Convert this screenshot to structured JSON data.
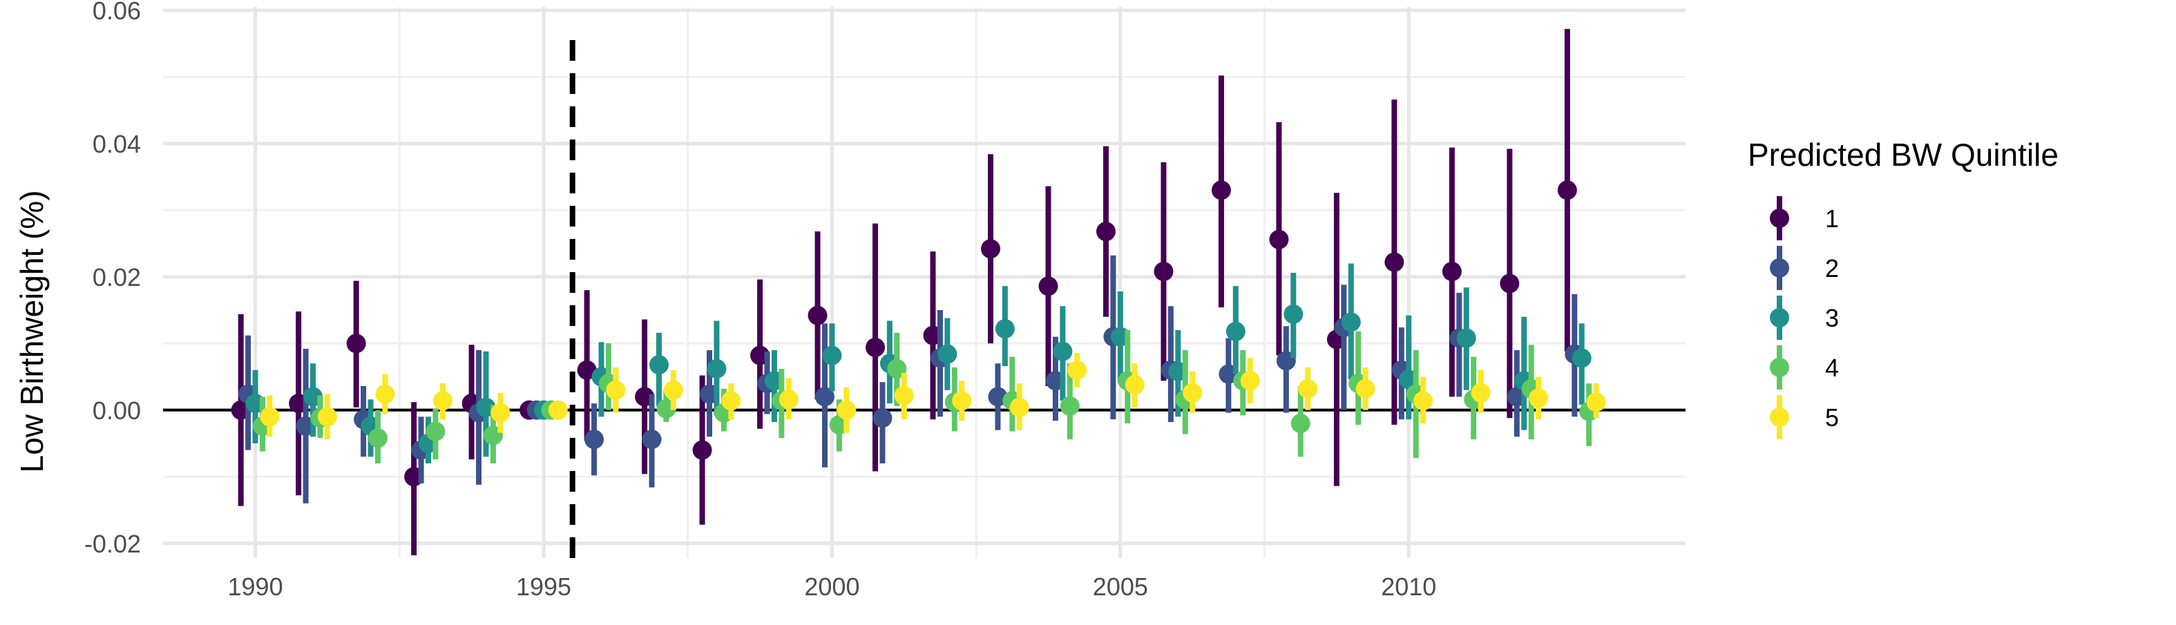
{
  "chart_data": {
    "type": "scatter",
    "subtype": "point-range (coefficient plot with confidence intervals)",
    "ylabel": "Low Birthweight (%)",
    "xlabel": "",
    "xlim": [
      1988.4,
      2014.8
    ],
    "ylim": [
      -0.0222,
      0.0605
    ],
    "x_ticks": [
      1990,
      1995,
      2000,
      2005,
      2010
    ],
    "y_ticks": [
      -0.02,
      0.0,
      0.02,
      0.04,
      0.06
    ],
    "y_tick_labels": [
      "-0.02",
      "0.00",
      "0.02",
      "0.04",
      "0.06"
    ],
    "grid": true,
    "zero_line": true,
    "reference_line": {
      "x": 1995.5,
      "style": "dashed"
    },
    "dodge_offsets": [
      -0.25,
      -0.125,
      0,
      0.125,
      0.25
    ],
    "legend": {
      "title": "Predicted BW Quintile",
      "position": "right"
    },
    "series": [
      {
        "name": "1",
        "color": "#440154",
        "x": [
          1990,
          1991,
          1992,
          1993,
          1994,
          1995,
          1996,
          1997,
          1998,
          1999,
          2000,
          2001,
          2002,
          2003,
          2004,
          2005,
          2006,
          2007,
          2008,
          2009,
          2010,
          2011,
          2012,
          2013
        ],
        "y": [
          0.0,
          0.001,
          0.01,
          -0.01,
          0.001,
          0.0,
          0.006,
          0.002,
          -0.006,
          0.0082,
          0.0142,
          0.0094,
          0.0112,
          0.0242,
          0.0186,
          0.0268,
          0.0208,
          0.033,
          0.0256,
          0.0106,
          0.0222,
          0.0208,
          0.019,
          0.033
        ],
        "low": [
          -0.0144,
          -0.0128,
          0.0004,
          -0.0218,
          -0.0074,
          0.0,
          -0.0046,
          -0.0096,
          -0.0172,
          -0.0028,
          0.0016,
          -0.0092,
          -0.0014,
          0.01,
          0.0036,
          0.014,
          0.0044,
          0.0154,
          0.0082,
          -0.0114,
          -0.0022,
          0.002,
          -0.0012,
          0.0088
        ],
        "high": [
          0.0144,
          0.0148,
          0.0194,
          0.0012,
          0.0098,
          0.0,
          0.018,
          0.0136,
          0.0052,
          0.0196,
          0.0268,
          0.028,
          0.0238,
          0.0384,
          0.0336,
          0.0396,
          0.0372,
          0.0502,
          0.0432,
          0.0326,
          0.0466,
          0.0394,
          0.0392,
          0.0572
        ]
      },
      {
        "name": "2",
        "color": "#3B528B",
        "x": [
          1990,
          1991,
          1992,
          1993,
          1994,
          1995,
          1996,
          1997,
          1998,
          1999,
          2000,
          2001,
          2002,
          2003,
          2004,
          2005,
          2006,
          2007,
          2008,
          2009,
          2010,
          2011,
          2012,
          2013
        ],
        "y": [
          0.0024,
          -0.0024,
          -0.0014,
          -0.006,
          -0.0004,
          0.0,
          -0.0044,
          -0.0044,
          0.0024,
          0.004,
          0.002,
          -0.0012,
          0.0078,
          0.002,
          0.0044,
          0.011,
          0.006,
          0.0054,
          0.0074,
          0.0124,
          0.006,
          0.0108,
          0.002,
          0.0084
        ],
        "low": [
          -0.006,
          -0.014,
          -0.007,
          -0.011,
          -0.0112,
          0.0,
          -0.0098,
          -0.0116,
          -0.004,
          -0.0006,
          -0.0086,
          -0.008,
          -0.001,
          -0.003,
          -0.0016,
          -0.0014,
          -0.0018,
          -0.0004,
          -0.0004,
          0.0,
          -0.0014,
          0.002,
          -0.004,
          -0.001
        ],
        "high": [
          0.0112,
          0.0092,
          0.0036,
          -0.001,
          0.009,
          0.0,
          0.001,
          0.0024,
          0.009,
          0.0088,
          0.013,
          0.0042,
          0.015,
          0.007,
          0.011,
          0.0232,
          0.0156,
          0.0108,
          0.0126,
          0.0188,
          0.0124,
          0.0176,
          0.009,
          0.0174
        ]
      },
      {
        "name": "3",
        "color": "#21908C",
        "x": [
          1990,
          1991,
          1992,
          1993,
          1994,
          1995,
          1996,
          1997,
          1998,
          1999,
          2000,
          2001,
          2002,
          2003,
          2004,
          2005,
          2006,
          2007,
          2008,
          2009,
          2010,
          2011,
          2012,
          2013
        ],
        "y": [
          0.001,
          0.002,
          -0.0024,
          -0.005,
          0.0004,
          0.0,
          0.005,
          0.0068,
          0.0062,
          0.0044,
          0.0082,
          0.007,
          0.0084,
          0.0122,
          0.0088,
          0.011,
          0.0058,
          0.0118,
          0.0144,
          0.0132,
          0.0046,
          0.0108,
          0.0044,
          0.0078
        ],
        "low": [
          -0.005,
          -0.004,
          -0.007,
          -0.008,
          -0.007,
          0.0,
          -0.001,
          0.0006,
          -0.0008,
          -0.0018,
          0.0028,
          0.001,
          0.003,
          0.0066,
          0.0014,
          0.004,
          -0.001,
          0.0054,
          0.0078,
          0.0046,
          -0.0014,
          0.003,
          -0.003,
          0.0008
        ],
        "high": [
          0.006,
          0.007,
          0.0016,
          -0.001,
          0.0088,
          0.0,
          0.0102,
          0.0116,
          0.0134,
          0.009,
          0.013,
          0.0134,
          0.0138,
          0.0186,
          0.0156,
          0.0178,
          0.012,
          0.0186,
          0.0206,
          0.022,
          0.0142,
          0.0184,
          0.014,
          0.013
        ]
      },
      {
        "name": "4",
        "color": "#5DC863",
        "x": [
          1990,
          1991,
          1992,
          1993,
          1994,
          1995,
          1996,
          1997,
          1998,
          1999,
          2000,
          2001,
          2002,
          2003,
          2004,
          2005,
          2006,
          2007,
          2008,
          2009,
          2010,
          2011,
          2012,
          2013
        ],
        "y": [
          -0.0024,
          -0.0012,
          -0.0042,
          -0.0032,
          -0.0038,
          0.0,
          0.004,
          0.0002,
          -0.0004,
          0.0014,
          -0.0022,
          0.0062,
          0.0012,
          0.0014,
          0.0006,
          0.0044,
          0.0016,
          0.0044,
          -0.002,
          0.004,
          0.0024,
          0.0016,
          0.0032,
          -0.0002
        ],
        "low": [
          -0.0062,
          -0.0042,
          -0.008,
          -0.0074,
          -0.008,
          0.0,
          0.0,
          -0.0018,
          -0.0032,
          -0.0042,
          -0.0062,
          0.0006,
          -0.0032,
          -0.0032,
          -0.0044,
          -0.002,
          -0.0036,
          -0.0008,
          -0.007,
          -0.0022,
          -0.0072,
          -0.0044,
          -0.0044,
          -0.0054
        ],
        "high": [
          0.002,
          0.0022,
          0.0,
          0.0002,
          0.0008,
          0.0,
          0.01,
          0.003,
          0.0032,
          0.0062,
          0.0016,
          0.0116,
          0.0064,
          0.008,
          0.007,
          0.012,
          0.009,
          0.009,
          0.0036,
          0.0118,
          0.009,
          0.008,
          0.0098,
          0.004
        ]
      },
      {
        "name": "5",
        "color": "#FDE725",
        "x": [
          1990,
          1991,
          1992,
          1993,
          1994,
          1995,
          1996,
          1997,
          1998,
          1999,
          2000,
          2001,
          2002,
          2003,
          2004,
          2005,
          2006,
          2007,
          2008,
          2009,
          2010,
          2011,
          2012,
          2013
        ],
        "y": [
          -0.001,
          -0.001,
          0.0024,
          0.0014,
          -0.0004,
          0.0,
          0.003,
          0.003,
          0.0014,
          0.0016,
          0.0,
          0.0022,
          0.0014,
          0.0004,
          0.006,
          0.0038,
          0.0026,
          0.0044,
          0.0032,
          0.0032,
          0.0014,
          0.0026,
          0.0018,
          0.0012
        ],
        "low": [
          -0.004,
          -0.0044,
          -0.0006,
          -0.0014,
          -0.0034,
          0.0,
          -0.0004,
          0.0,
          -0.0014,
          -0.0014,
          -0.0034,
          -0.0014,
          -0.0016,
          -0.003,
          0.0034,
          0.0004,
          -0.0004,
          0.001,
          0.0,
          0.0,
          -0.002,
          -0.0004,
          -0.0014,
          -0.0012
        ],
        "high": [
          0.0022,
          0.0024,
          0.0054,
          0.004,
          0.0026,
          0.0,
          0.0064,
          0.006,
          0.004,
          0.0048,
          0.0034,
          0.0056,
          0.0044,
          0.004,
          0.0086,
          0.007,
          0.0058,
          0.0078,
          0.0064,
          0.0064,
          0.005,
          0.006,
          0.005,
          0.004
        ]
      }
    ]
  }
}
